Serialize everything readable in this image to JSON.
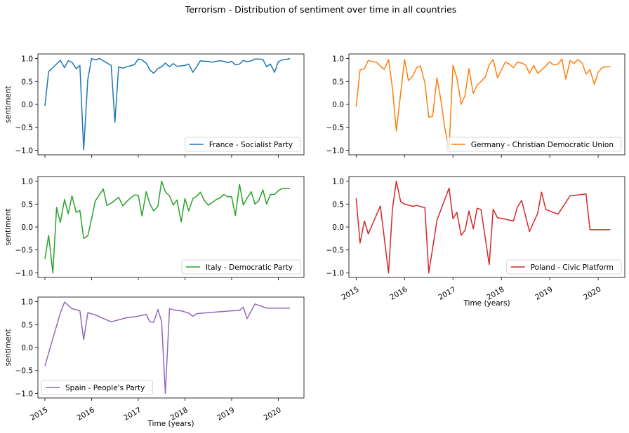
{
  "figure_title": "Terrorism - Distribution of sentiment over time in all countries",
  "ylabel": "sentiment",
  "xlabel": "Time (years)",
  "chart_data": [
    {
      "type": "line",
      "legend": "France - Socialist Party",
      "color": "#1f77b4",
      "legend_loc": "lower right",
      "show_xticklabels": false,
      "show_xlabel": false,
      "ylim": [
        -1.1,
        1.1
      ],
      "yticks": [
        -1.0,
        -0.5,
        0.0,
        0.5,
        1.0
      ],
      "xlim": [
        2014.85,
        2020.55
      ],
      "xticks": [
        2015,
        2016,
        2017,
        2018,
        2019,
        2020
      ],
      "x": [
        2015.0,
        2015.08,
        2015.17,
        2015.25,
        2015.33,
        2015.42,
        2015.5,
        2015.58,
        2015.67,
        2015.75,
        2015.83,
        2015.92,
        2016.0,
        2016.08,
        2016.17,
        2016.25,
        2016.42,
        2016.5,
        2016.58,
        2016.67,
        2016.75,
        2016.83,
        2016.92,
        2017.0,
        2017.08,
        2017.17,
        2017.25,
        2017.33,
        2017.42,
        2017.5,
        2017.58,
        2017.67,
        2017.75,
        2017.83,
        2017.92,
        2018.0,
        2018.08,
        2018.17,
        2018.25,
        2018.33,
        2018.42,
        2018.5,
        2018.58,
        2018.67,
        2018.75,
        2018.83,
        2018.92,
        2019.0,
        2019.08,
        2019.17,
        2019.25,
        2019.33,
        2019.42,
        2019.5,
        2019.58,
        2019.67,
        2019.75,
        2019.83,
        2019.92,
        2020.0,
        2020.08,
        2020.17,
        2020.25
      ],
      "y": [
        -0.03,
        0.72,
        0.8,
        0.88,
        0.96,
        0.8,
        0.95,
        0.92,
        0.78,
        0.85,
        -0.99,
        0.55,
        1.0,
        0.97,
        1.0,
        0.95,
        0.85,
        -0.39,
        0.82,
        0.79,
        0.82,
        0.84,
        0.87,
        0.99,
        0.97,
        0.9,
        0.75,
        0.68,
        0.78,
        0.82,
        0.9,
        0.82,
        0.89,
        0.83,
        0.84,
        0.85,
        0.88,
        0.7,
        0.82,
        0.95,
        0.94,
        0.94,
        0.92,
        0.94,
        0.95,
        0.94,
        0.91,
        0.94,
        0.86,
        0.88,
        0.96,
        0.93,
        0.95,
        0.99,
        0.99,
        0.98,
        0.82,
        0.88,
        0.7,
        0.93,
        0.97,
        0.98,
        1.0
      ]
    },
    {
      "type": "line",
      "legend": "Germany - Christian Democratic Union",
      "color": "#ff7f0e",
      "legend_loc": "lower right",
      "show_xticklabels": false,
      "show_xlabel": false,
      "ylim": [
        -1.1,
        1.1
      ],
      "yticks": [
        -1.0,
        -0.5,
        0.0,
        0.5,
        1.0
      ],
      "xlim": [
        2014.85,
        2020.55
      ],
      "xticks": [
        2015,
        2016,
        2017,
        2018,
        2019,
        2020
      ],
      "x": [
        2015.0,
        2015.08,
        2015.17,
        2015.25,
        2015.33,
        2015.42,
        2015.58,
        2015.67,
        2015.75,
        2015.83,
        2015.92,
        2016.0,
        2016.08,
        2016.17,
        2016.25,
        2016.33,
        2016.42,
        2016.5,
        2016.58,
        2016.67,
        2016.75,
        2016.83,
        2016.92,
        2017.0,
        2017.08,
        2017.17,
        2017.25,
        2017.33,
        2017.42,
        2017.5,
        2017.58,
        2017.67,
        2017.75,
        2017.83,
        2017.92,
        2018.0,
        2018.08,
        2018.17,
        2018.25,
        2018.33,
        2018.42,
        2018.5,
        2018.58,
        2018.67,
        2018.75,
        2018.83,
        2018.92,
        2019.0,
        2019.08,
        2019.17,
        2019.25,
        2019.33,
        2019.42,
        2019.5,
        2019.58,
        2019.67,
        2019.75,
        2019.83,
        2019.92,
        2020.0,
        2020.08,
        2020.17,
        2020.25
      ],
      "y": [
        -0.05,
        0.75,
        0.78,
        0.96,
        0.93,
        0.92,
        0.76,
        0.98,
        0.34,
        -0.58,
        0.25,
        0.98,
        0.52,
        0.62,
        0.8,
        0.84,
        0.47,
        -0.28,
        -0.26,
        0.58,
        0.1,
        -0.5,
        -1.0,
        0.85,
        0.58,
        0.0,
        0.2,
        0.78,
        0.24,
        0.42,
        0.5,
        0.6,
        0.86,
        0.98,
        0.58,
        0.75,
        0.92,
        0.88,
        0.8,
        0.92,
        0.9,
        0.86,
        0.68,
        0.85,
        0.68,
        0.75,
        0.84,
        0.93,
        0.86,
        0.88,
        0.99,
        0.55,
        0.96,
        0.89,
        0.98,
        0.9,
        0.66,
        0.76,
        0.44,
        0.7,
        0.8,
        0.82,
        0.82
      ]
    },
    {
      "type": "line",
      "legend": "Italy - Democratic Party",
      "color": "#2ca02c",
      "legend_loc": "lower right",
      "show_xticklabels": false,
      "show_xlabel": false,
      "ylim": [
        -1.1,
        1.1
      ],
      "yticks": [
        -1.0,
        -0.5,
        0.0,
        0.5,
        1.0
      ],
      "xlim": [
        2014.85,
        2020.55
      ],
      "xticks": [
        2015,
        2016,
        2017,
        2018,
        2019,
        2020
      ],
      "x": [
        2015.0,
        2015.08,
        2015.17,
        2015.25,
        2015.33,
        2015.42,
        2015.5,
        2015.58,
        2015.67,
        2015.75,
        2015.83,
        2015.92,
        2016.0,
        2016.08,
        2016.25,
        2016.33,
        2016.42,
        2016.58,
        2016.67,
        2016.75,
        2016.83,
        2016.92,
        2017.0,
        2017.08,
        2017.17,
        2017.25,
        2017.33,
        2017.42,
        2017.5,
        2017.58,
        2017.67,
        2017.75,
        2017.83,
        2017.92,
        2018.0,
        2018.08,
        2018.17,
        2018.25,
        2018.33,
        2018.42,
        2018.5,
        2018.58,
        2018.67,
        2018.75,
        2018.83,
        2018.92,
        2019.0,
        2019.08,
        2019.17,
        2019.25,
        2019.33,
        2019.42,
        2019.5,
        2019.58,
        2019.67,
        2019.75,
        2019.83,
        2019.92,
        2020.0,
        2020.08,
        2020.17,
        2020.25
      ],
      "y": [
        -0.7,
        -0.18,
        -1.0,
        0.43,
        0.1,
        0.6,
        0.29,
        0.68,
        0.32,
        0.36,
        -0.25,
        -0.19,
        0.18,
        0.57,
        0.83,
        0.47,
        0.52,
        0.65,
        0.46,
        0.55,
        0.63,
        0.7,
        0.69,
        0.24,
        0.77,
        0.5,
        0.35,
        0.45,
        1.0,
        0.77,
        0.68,
        0.48,
        0.59,
        0.11,
        0.62,
        0.35,
        0.62,
        0.67,
        0.76,
        0.57,
        0.48,
        0.53,
        0.6,
        0.63,
        0.71,
        0.66,
        0.66,
        0.25,
        0.93,
        0.48,
        0.63,
        0.77,
        0.5,
        0.57,
        0.81,
        0.5,
        0.71,
        0.71,
        0.79,
        0.84,
        0.84,
        0.84
      ]
    },
    {
      "type": "line",
      "legend": "Poland - Civic Platform",
      "color": "#d62728",
      "legend_loc": "lower right",
      "show_xticklabels": true,
      "show_xlabel": true,
      "ylim": [
        -1.1,
        1.1
      ],
      "yticks": [
        -1.0,
        -0.5,
        0.0,
        0.5,
        1.0
      ],
      "xlim": [
        2014.85,
        2020.55
      ],
      "xticks": [
        2015,
        2016,
        2017,
        2018,
        2019,
        2020
      ],
      "x": [
        2015.0,
        2015.08,
        2015.17,
        2015.25,
        2015.5,
        2015.67,
        2015.75,
        2015.83,
        2015.92,
        2016.0,
        2016.17,
        2016.25,
        2016.42,
        2016.5,
        2016.67,
        2016.92,
        2017.0,
        2017.08,
        2017.17,
        2017.25,
        2017.33,
        2017.42,
        2017.5,
        2017.58,
        2017.75,
        2017.83,
        2017.92,
        2018.0,
        2018.25,
        2018.33,
        2018.42,
        2018.58,
        2018.75,
        2018.83,
        2018.92,
        2019.17,
        2019.42,
        2019.75,
        2019.83,
        2020.0,
        2020.25
      ],
      "y": [
        0.63,
        -0.35,
        0.13,
        -0.15,
        0.46,
        -1.0,
        0.4,
        1.0,
        0.55,
        0.5,
        0.45,
        0.47,
        0.42,
        -1.0,
        0.15,
        0.85,
        0.18,
        0.32,
        -0.18,
        -0.07,
        0.35,
        -0.04,
        0.41,
        0.38,
        -0.82,
        0.39,
        0.2,
        0.19,
        0.13,
        0.43,
        0.58,
        -0.1,
        0.3,
        0.76,
        0.38,
        0.28,
        0.68,
        0.72,
        -0.06,
        -0.06,
        -0.06
      ]
    },
    {
      "type": "line",
      "legend": "Spain - People's Party",
      "color": "#9467bd",
      "legend_loc": "lower left",
      "show_xticklabels": true,
      "show_xlabel": true,
      "ylim": [
        -1.1,
        1.1
      ],
      "yticks": [
        -1.0,
        -0.5,
        0.0,
        0.5,
        1.0
      ],
      "xlim": [
        2014.85,
        2020.55
      ],
      "xticks": [
        2015,
        2016,
        2017,
        2018,
        2019,
        2020
      ],
      "x": [
        2015.0,
        2015.08,
        2015.17,
        2015.33,
        2015.42,
        2015.58,
        2015.75,
        2015.83,
        2015.92,
        2016.08,
        2016.42,
        2016.75,
        2016.92,
        2017.17,
        2017.25,
        2017.33,
        2017.42,
        2017.5,
        2017.58,
        2017.67,
        2017.75,
        2017.83,
        2017.92,
        2018.08,
        2018.17,
        2018.25,
        2018.5,
        2018.75,
        2019.0,
        2019.17,
        2019.25,
        2019.33,
        2019.5,
        2019.75,
        2020.0,
        2020.25
      ],
      "y": [
        -0.4,
        -0.12,
        0.2,
        0.75,
        0.99,
        0.85,
        0.8,
        0.17,
        0.76,
        0.71,
        0.56,
        0.65,
        0.67,
        0.72,
        0.56,
        0.55,
        0.83,
        0.57,
        -1.0,
        0.85,
        0.82,
        0.81,
        0.8,
        0.75,
        0.68,
        0.74,
        0.76,
        0.78,
        0.8,
        0.81,
        0.88,
        0.63,
        0.95,
        0.86,
        0.86,
        0.86
      ]
    }
  ]
}
